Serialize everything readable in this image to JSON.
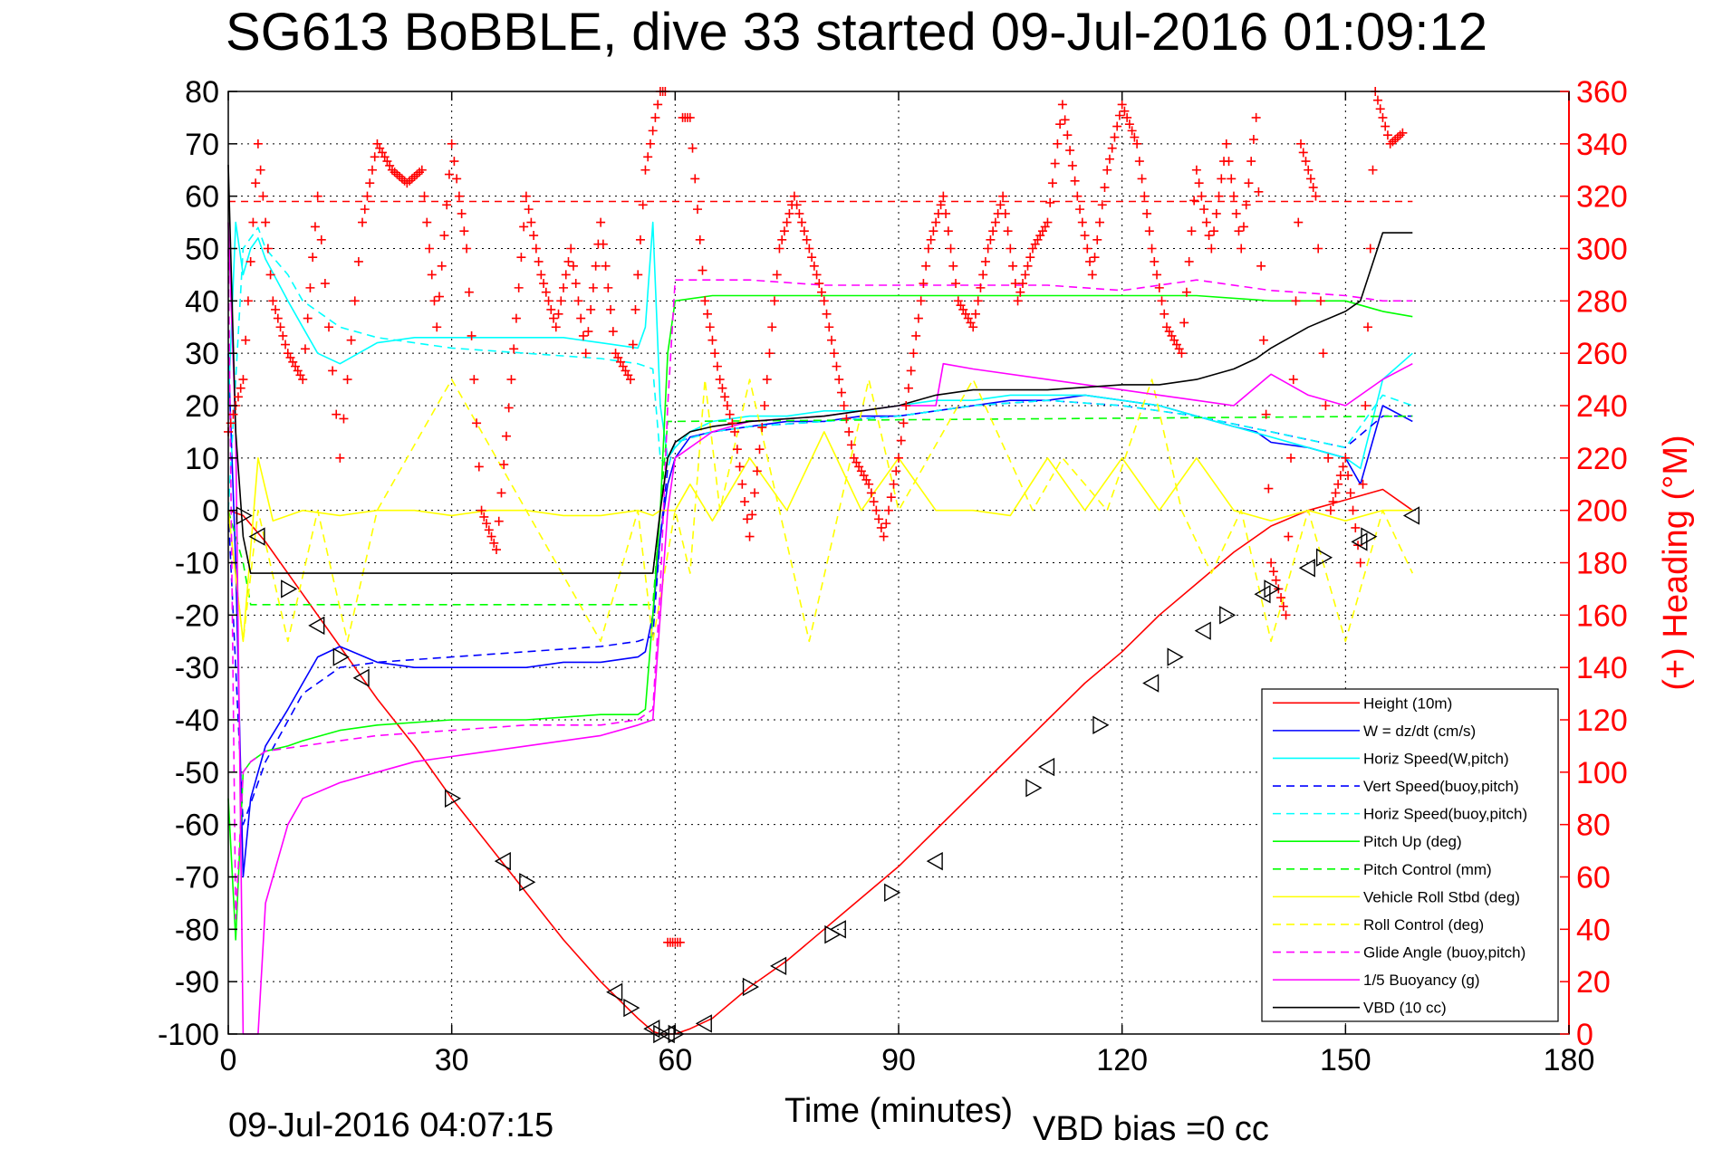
{
  "title": "SG613 BoBBLE, dive 33 started 09-Jul-2016 01:09:12",
  "footer": {
    "timestamp": "09-Jul-2016 04:07:15",
    "vbd_bias": "VBD bias =0 cc"
  },
  "chart_data": {
    "type": "line",
    "title": "SG613 BoBBLE, dive 33 started 09-Jul-2016 01:09:12",
    "xlabel": "Time (minutes)",
    "ylabel_right": "(+) Heading (°M)",
    "xlim": [
      0,
      180
    ],
    "ylim": [
      -100,
      80
    ],
    "ylim_right": [
      0,
      360
    ],
    "xticks": [
      "0",
      "30",
      "60",
      "90",
      "120",
      "150",
      "180"
    ],
    "yticks": [
      "80",
      "70",
      "60",
      "50",
      "40",
      "30",
      "20",
      "10",
      "0",
      "-10",
      "-20",
      "-30",
      "-40",
      "-50",
      "-60",
      "-70",
      "-80",
      "-90",
      "-100"
    ],
    "yticks_right": [
      "360",
      "340",
      "320",
      "300",
      "280",
      "260",
      "240",
      "220",
      "200",
      "180",
      "160",
      "140",
      "120",
      "100",
      "80",
      "60",
      "40",
      "20",
      "0"
    ],
    "grid": true,
    "legend_position": "bottom-right",
    "colors": {
      "height": "#ff0000",
      "w": "#0000ff",
      "horiz_speed": "#00ffff",
      "pitch": "#00ff00",
      "roll": "#ffff00",
      "glide": "#ff00ff",
      "vbd": "#000000",
      "heading": "#ff0000"
    },
    "series": [
      {
        "name": "Height (10m)",
        "color": "#ff0000",
        "dash": "solid",
        "x": [
          0,
          2,
          5,
          10,
          15,
          20,
          25,
          30,
          35,
          40,
          45,
          50,
          55,
          57,
          58,
          59,
          60,
          62,
          65,
          70,
          75,
          80,
          85,
          90,
          95,
          100,
          105,
          110,
          115,
          120,
          125,
          130,
          135,
          140,
          145,
          150,
          155,
          159
        ],
        "y": [
          0,
          -1,
          -6,
          -16,
          -26,
          -36,
          -45,
          -55,
          -64,
          -73,
          -82,
          -90,
          -97,
          -99.5,
          -100,
          -100,
          -100,
          -99,
          -97,
          -91,
          -86,
          -80,
          -74,
          -68,
          -61,
          -54,
          -47,
          -40,
          -33,
          -27,
          -20,
          -14,
          -8,
          -3,
          0,
          2,
          4,
          0
        ]
      },
      {
        "name": "W = dz/dt (cm/s)",
        "color": "#0000ff",
        "dash": "solid",
        "x": [
          0,
          1,
          2,
          3,
          5,
          8,
          10,
          12,
          15,
          20,
          25,
          30,
          35,
          40,
          45,
          50,
          55,
          56,
          57,
          58,
          59,
          60,
          62,
          65,
          70,
          75,
          80,
          85,
          90,
          95,
          100,
          105,
          110,
          115,
          120,
          125,
          130,
          135,
          138,
          140,
          145,
          150,
          152,
          155,
          159
        ],
        "y": [
          30,
          -10,
          -70,
          -55,
          -45,
          -38,
          -33,
          -28,
          -26,
          -29,
          -30,
          -30,
          -30,
          -30,
          -29,
          -29,
          -28,
          -27,
          -20,
          -5,
          5,
          10,
          14,
          15,
          16,
          17,
          17,
          18,
          18,
          19,
          20,
          21,
          21,
          22,
          21,
          20,
          18,
          16,
          15,
          13,
          12,
          10,
          5,
          20,
          17
        ]
      },
      {
        "name": "Horiz Speed(W,pitch)",
        "color": "#00ffff",
        "dash": "solid",
        "x": [
          0,
          1,
          2,
          3,
          4,
          5,
          8,
          10,
          12,
          15,
          20,
          25,
          30,
          35,
          40,
          45,
          50,
          55,
          56,
          57,
          58,
          59,
          60,
          62,
          65,
          70,
          75,
          80,
          85,
          90,
          95,
          100,
          105,
          110,
          115,
          120,
          125,
          130,
          135,
          140,
          145,
          150,
          152,
          155,
          159
        ],
        "y": [
          20,
          55,
          45,
          50,
          52,
          48,
          40,
          35,
          30,
          28,
          32,
          33,
          33,
          33,
          33,
          33,
          32,
          31,
          35,
          55,
          20,
          10,
          12,
          15,
          17,
          18,
          18,
          19,
          19,
          20,
          21,
          21,
          22,
          22,
          22,
          21,
          20,
          18,
          16,
          14,
          12,
          10,
          8,
          25,
          30
        ]
      },
      {
        "name": "Vert Speed(buoy,pitch)",
        "color": "#0000ff",
        "dash": "dashed",
        "x": [
          0,
          2,
          5,
          10,
          15,
          20,
          30,
          40,
          50,
          55,
          57,
          58,
          59,
          60,
          65,
          70,
          80,
          90,
          100,
          110,
          120,
          130,
          140,
          150,
          155,
          159
        ],
        "y": [
          0,
          -60,
          -48,
          -35,
          -30,
          -29,
          -28,
          -27,
          -26,
          -25,
          -24,
          -5,
          8,
          13,
          15,
          16,
          17,
          18,
          20,
          21,
          20,
          18,
          15,
          12,
          18,
          18
        ]
      },
      {
        "name": "Horiz Speed(buoy,pitch)",
        "color": "#00ffff",
        "dash": "dashed",
        "x": [
          0,
          2,
          4,
          5,
          8,
          10,
          15,
          20,
          30,
          40,
          50,
          55,
          57,
          58,
          59,
          60,
          65,
          70,
          80,
          90,
          100,
          110,
          120,
          130,
          140,
          150,
          155,
          159
        ],
        "y": [
          0,
          50,
          54,
          50,
          45,
          40,
          35,
          33,
          31,
          30,
          29,
          28,
          27,
          10,
          8,
          13,
          15,
          16,
          17,
          18,
          20,
          21,
          20,
          18,
          15,
          12,
          22,
          20
        ]
      },
      {
        "name": "Pitch Up (deg)",
        "color": "#00ff00",
        "dash": "solid",
        "x": [
          0,
          1,
          2,
          3,
          5,
          8,
          10,
          15,
          20,
          30,
          40,
          50,
          55,
          56,
          57,
          58,
          59,
          60,
          65,
          70,
          80,
          90,
          100,
          110,
          120,
          130,
          140,
          150,
          155,
          159
        ],
        "y": [
          -55,
          -82,
          -50,
          -48,
          -46,
          -45,
          -44,
          -42,
          -41,
          -40,
          -40,
          -39,
          -39,
          -38,
          -20,
          0,
          30,
          40,
          41,
          41,
          41,
          41,
          41,
          41,
          41,
          41,
          40,
          40,
          38,
          37
        ]
      },
      {
        "name": "Pitch Control (mm)",
        "color": "#00ff00",
        "dash": "dashed",
        "x": [
          0,
          2,
          3,
          57,
          58,
          59,
          60,
          159
        ],
        "y": [
          0,
          -10,
          -18,
          -18,
          0,
          17,
          17,
          18
        ]
      },
      {
        "name": "Vehicle Roll Stbd (deg)",
        "color": "#ffff00",
        "dash": "solid",
        "x": [
          0,
          2,
          4,
          6,
          10,
          15,
          20,
          25,
          30,
          35,
          40,
          45,
          50,
          55,
          57,
          58,
          59,
          60,
          62,
          65,
          70,
          75,
          80,
          85,
          90,
          95,
          100,
          105,
          110,
          115,
          120,
          125,
          130,
          135,
          140,
          145,
          150,
          155,
          159
        ],
        "y": [
          0,
          -25,
          10,
          -2,
          0,
          -1,
          0,
          0,
          -1,
          0,
          0,
          -1,
          -1,
          0,
          -1,
          0,
          0,
          0,
          5,
          -2,
          10,
          0,
          15,
          0,
          10,
          0,
          0,
          -1,
          10,
          0,
          10,
          0,
          10,
          0,
          -2,
          0,
          -2,
          0,
          0
        ]
      },
      {
        "name": "Roll Control (deg)",
        "color": "#ffff00",
        "dash": "dashed",
        "x": [
          0,
          2,
          4,
          8,
          12,
          16,
          20,
          30,
          40,
          50,
          55,
          57,
          60,
          62,
          64,
          66,
          70,
          74,
          78,
          82,
          86,
          90,
          100,
          108,
          112,
          118,
          124,
          128,
          132,
          136,
          140,
          145,
          150,
          155,
          159
        ],
        "y": [
          0,
          -25,
          0,
          -25,
          0,
          -25,
          0,
          25,
          0,
          -25,
          0,
          -25,
          0,
          -12,
          25,
          0,
          25,
          0,
          -25,
          0,
          25,
          0,
          25,
          0,
          10,
          0,
          25,
          0,
          -12,
          0,
          -25,
          0,
          -25,
          0,
          -12
        ]
      },
      {
        "name": "Glide Angle (buoy,pitch)",
        "color": "#ff00ff",
        "dash": "dashed",
        "x": [
          0,
          1,
          2,
          3,
          5,
          10,
          15,
          20,
          30,
          40,
          50,
          55,
          57,
          58,
          59,
          60,
          65,
          70,
          80,
          90,
          100,
          110,
          120,
          130,
          140,
          150,
          155,
          159
        ],
        "y": [
          50,
          -78,
          -50,
          -48,
          -46,
          -45,
          -44,
          -43,
          -42,
          -41,
          -41,
          -40,
          -38,
          -15,
          20,
          44,
          44,
          44,
          43,
          43,
          43,
          43,
          42,
          44,
          42,
          41,
          40,
          40
        ]
      },
      {
        "name": "1/5 Buoyancy (g)",
        "color": "#ff00ff",
        "dash": "solid",
        "x": [
          0,
          1,
          2,
          3,
          4,
          5,
          8,
          10,
          15,
          20,
          25,
          30,
          40,
          50,
          55,
          57,
          58,
          59,
          60,
          65,
          70,
          80,
          90,
          95,
          96,
          100,
          110,
          120,
          125,
          130,
          135,
          140,
          145,
          150,
          155,
          159
        ],
        "y": [
          55,
          15,
          -100,
          -100,
          -100,
          -75,
          -60,
          -55,
          -52,
          -50,
          -48,
          -47,
          -45,
          -43,
          -41,
          -40,
          -20,
          0,
          10,
          15,
          17,
          18,
          20,
          20,
          28,
          27,
          25,
          23,
          22,
          21,
          20,
          26,
          22,
          20,
          25,
          28
        ]
      },
      {
        "name": "VBD (10 cc)",
        "color": "#000000",
        "dash": "solid",
        "x": [
          0,
          1,
          2,
          3,
          5,
          30,
          57,
          58,
          59,
          60,
          62,
          65,
          70,
          80,
          90,
          95,
          100,
          110,
          120,
          125,
          130,
          135,
          138,
          140,
          145,
          150,
          152,
          155,
          159
        ],
        "y": [
          66,
          15,
          -5,
          -12,
          -12,
          -12,
          -12,
          0,
          10,
          13,
          15,
          16,
          17,
          18,
          20,
          22,
          23,
          23,
          24,
          24,
          25,
          27,
          29,
          31,
          35,
          38,
          40,
          53,
          53
        ]
      }
    ],
    "heading_series": {
      "name": "(+) Heading (°M)",
      "color": "#ff0000",
      "axis": "right",
      "x": [
        0,
        2,
        4,
        6,
        8,
        10,
        12,
        15,
        18,
        20,
        22,
        24,
        26,
        28,
        30,
        32,
        34,
        36,
        38,
        40,
        42,
        44,
        46,
        48,
        50,
        52,
        54,
        56,
        58,
        60,
        62,
        64,
        66,
        68,
        70,
        72,
        74,
        76,
        78,
        80,
        82,
        84,
        86,
        88,
        90,
        92,
        94,
        96,
        98,
        100,
        102,
        104,
        106,
        108,
        110,
        112,
        114,
        116,
        118,
        120,
        122,
        124,
        126,
        128,
        130,
        132,
        134,
        136,
        138,
        140,
        142,
        144,
        146,
        148,
        150,
        152,
        154,
        156,
        158
      ],
      "y": [
        230,
        250,
        340,
        280,
        260,
        250,
        320,
        220,
        310,
        340,
        330,
        325,
        330,
        270,
        340,
        300,
        200,
        185,
        250,
        320,
        290,
        270,
        300,
        260,
        310,
        260,
        250,
        330,
        360,
        35,
        350,
        280,
        250,
        230,
        190,
        240,
        300,
        320,
        300,
        280,
        250,
        220,
        210,
        190,
        220,
        260,
        300,
        320,
        280,
        270,
        300,
        320,
        280,
        300,
        310,
        355,
        320,
        290,
        330,
        355,
        340,
        300,
        270,
        260,
        330,
        300,
        340,
        300,
        350,
        180,
        160,
        340,
        320,
        200,
        220,
        180,
        360,
        340,
        345
      ]
    },
    "reference_line": {
      "name": "heading reference",
      "axis": "right",
      "y": 318,
      "color": "#ff0000",
      "dash": "dashed"
    },
    "markers": {
      "series": "Height (10m)",
      "symbol": "triangle",
      "color": "#000000",
      "x": [
        2,
        4,
        8,
        12,
        15,
        18,
        30,
        37,
        40,
        52,
        54,
        57,
        58,
        59,
        60,
        64,
        70,
        74,
        81,
        82,
        89,
        95,
        108,
        110,
        117,
        124,
        127,
        131,
        134,
        139,
        140,
        145,
        147,
        152,
        153,
        159
      ],
      "y": [
        -1,
        -5,
        -15,
        -22,
        -28,
        -32,
        -55,
        -67,
        -71,
        -92,
        -95,
        -99,
        -100,
        -100,
        -100,
        -98,
        -91,
        -87,
        -81,
        -80,
        -73,
        -67,
        -53,
        -49,
        -41,
        -33,
        -28,
        -23,
        -20,
        -16,
        -15,
        -11,
        -9,
        -6,
        -5,
        -1
      ]
    },
    "legend": [
      "Height (10m)",
      "W = dz/dt (cm/s)",
      "Horiz Speed(W,pitch)",
      "Vert Speed(buoy,pitch)",
      "Horiz Speed(buoy,pitch)",
      "Pitch Up (deg)",
      "Pitch Control (mm)",
      "Vehicle Roll Stbd (deg)",
      "Roll Control (deg)",
      "Glide Angle (buoy,pitch)",
      "1/5 Buoyancy (g)",
      "VBD (10 cc)"
    ]
  }
}
